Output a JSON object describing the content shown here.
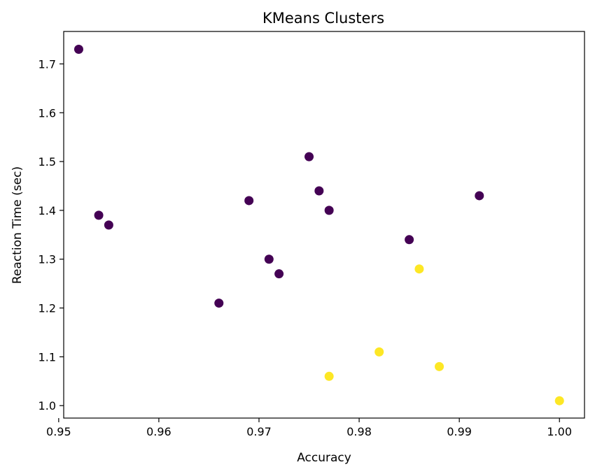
{
  "chart_data": {
    "type": "scatter",
    "title": "KMeans Clusters",
    "xlabel": "Accuracy",
    "ylabel": "Reaction Time (sec)",
    "xlim": [
      0.9505,
      1.0025
    ],
    "ylim": [
      0.9745,
      1.7665
    ],
    "xticks": [
      0.95,
      0.96,
      0.97,
      0.98,
      0.99,
      1.0
    ],
    "xtick_labels": [
      "0.95",
      "0.96",
      "0.97",
      "0.98",
      "0.99",
      "1.00"
    ],
    "yticks": [
      1.0,
      1.1,
      1.2,
      1.3,
      1.4,
      1.5,
      1.6,
      1.7
    ],
    "ytick_labels": [
      "1.0",
      "1.1",
      "1.2",
      "1.3",
      "1.4",
      "1.5",
      "1.6",
      "1.7"
    ],
    "grid": false,
    "cluster_colors": [
      "#440154",
      "#fde725"
    ],
    "points": [
      {
        "x": 0.952,
        "y": 1.73,
        "cluster": 0
      },
      {
        "x": 0.954,
        "y": 1.39,
        "cluster": 0
      },
      {
        "x": 0.955,
        "y": 1.37,
        "cluster": 0
      },
      {
        "x": 0.966,
        "y": 1.21,
        "cluster": 0
      },
      {
        "x": 0.969,
        "y": 1.42,
        "cluster": 0
      },
      {
        "x": 0.971,
        "y": 1.3,
        "cluster": 0
      },
      {
        "x": 0.972,
        "y": 1.27,
        "cluster": 0
      },
      {
        "x": 0.975,
        "y": 1.51,
        "cluster": 0
      },
      {
        "x": 0.976,
        "y": 1.44,
        "cluster": 0
      },
      {
        "x": 0.977,
        "y": 1.4,
        "cluster": 0
      },
      {
        "x": 0.985,
        "y": 1.34,
        "cluster": 0
      },
      {
        "x": 0.992,
        "y": 1.43,
        "cluster": 0
      },
      {
        "x": 0.977,
        "y": 1.06,
        "cluster": 1
      },
      {
        "x": 0.982,
        "y": 1.11,
        "cluster": 1
      },
      {
        "x": 0.986,
        "y": 1.28,
        "cluster": 1
      },
      {
        "x": 0.988,
        "y": 1.08,
        "cluster": 1
      },
      {
        "x": 1.0,
        "y": 1.01,
        "cluster": 1
      }
    ]
  }
}
